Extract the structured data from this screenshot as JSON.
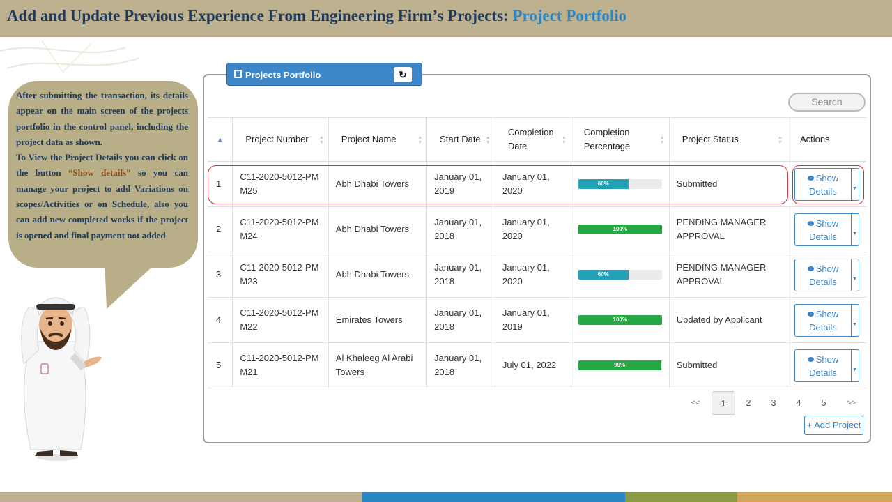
{
  "header": {
    "title_main": "Add and Update Previous Experience From Engineering Firm’s Projects: ",
    "title_highlight": "Project Portfolio"
  },
  "bubble": {
    "text_1": "After submitting the transaction, its details appear on the main screen of the projects portfolio in the control panel, including the project data as shown.",
    "text_2": "To View the Project Details you can click on the button ",
    "text_em": "“Show details”",
    "text_3": " so you can manage your project to add Variations on scopes/Activities or on Schedule, also you can add new completed works if the project is opened and final payment not added"
  },
  "panel": {
    "tab_label": "Projects Portfolio",
    "refresh_icon": "refresh-icon",
    "search_placeholder": "Search"
  },
  "table": {
    "columns": [
      {
        "label": "Project Number"
      },
      {
        "label": "Project Name"
      },
      {
        "label": "Start Date"
      },
      {
        "label": "Completion Date"
      },
      {
        "label": "Completion Percentage"
      },
      {
        "label": "Project Status"
      },
      {
        "label": "Actions"
      }
    ],
    "rows": [
      {
        "idx": "1",
        "number": "C11-2020-5012-PMM25",
        "name": "Abh Dhabi Towers",
        "start": "January 01, 2019",
        "completion": "January 01, 2020",
        "percent": 60,
        "percent_label": "60%",
        "bar_color": "#23a1b7",
        "status": "Submitted",
        "action": "Show Details"
      },
      {
        "idx": "2",
        "number": "C11-2020-5012-PMM24",
        "name": "Abh Dhabi Towers",
        "start": "January 01, 2018",
        "completion": "January 01, 2020",
        "percent": 100,
        "percent_label": "100%",
        "bar_color": "#28a745",
        "status": "PENDING MANAGER APPROVAL",
        "action": "Show Details"
      },
      {
        "idx": "3",
        "number": "C11-2020-5012-PMM23",
        "name": "Abh Dhabi Towers",
        "start": "January 01, 2018",
        "completion": "January 01, 2020",
        "percent": 60,
        "percent_label": "60%",
        "bar_color": "#23a1b7",
        "status": "PENDING MANAGER APPROVAL",
        "action": "Show Details"
      },
      {
        "idx": "4",
        "number": "C11-2020-5012-PMM22",
        "name": "Emirates Towers",
        "start": "January 01, 2018",
        "completion": "January 01, 2019",
        "percent": 100,
        "percent_label": "100%",
        "bar_color": "#28a745",
        "status": "Updated by Applicant",
        "action": "Show Details"
      },
      {
        "idx": "5",
        "number": "C11-2020-5012-PMM21",
        "name": "Al Khaleeg Al Arabi Towers",
        "start": "January 01, 2018",
        "completion": "July 01, 2022",
        "percent": 99,
        "percent_label": "99%",
        "bar_color": "#28a745",
        "status": "Submitted",
        "action": "Show Details"
      }
    ]
  },
  "pagination": {
    "prev": "<<",
    "pages": [
      "1",
      "2",
      "3",
      "4",
      "5"
    ],
    "next": ">>",
    "active": "1"
  },
  "add_button": "+ Add Project",
  "colors": {
    "header_bg": "#bdb18f",
    "accent_blue": "#3d86c8",
    "title_navy": "#1f3a5c",
    "highlight_red": "#c9323a"
  },
  "footer_colors": [
    "#bdb18f",
    "#2b86c6",
    "#8a9a45",
    "#d2a55a"
  ]
}
